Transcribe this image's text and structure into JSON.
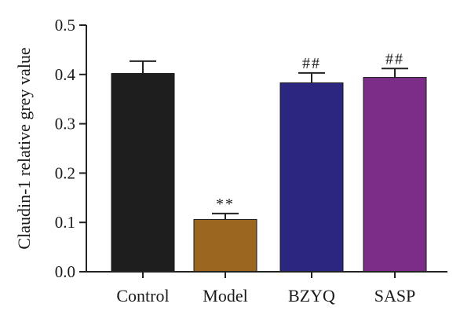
{
  "chart_data": {
    "type": "bar",
    "categories": [
      "Control",
      "Model",
      "BZYQ",
      "SASP"
    ],
    "values": [
      0.402,
      0.106,
      0.383,
      0.394
    ],
    "errors": [
      0.025,
      0.012,
      0.02,
      0.018
    ],
    "annotations": [
      "",
      "**",
      "##",
      "##"
    ],
    "colors": [
      "#1e1e1e",
      "#9a6620",
      "#2b2680",
      "#7b2d87"
    ],
    "title": "",
    "xlabel": "",
    "ylabel": "Claudin-1 relative grey value",
    "ylim": [
      0,
      0.5
    ],
    "yticks": [
      "0.0",
      "0.1",
      "0.2",
      "0.3",
      "0.4",
      "0.5"
    ],
    "grid": false
  }
}
